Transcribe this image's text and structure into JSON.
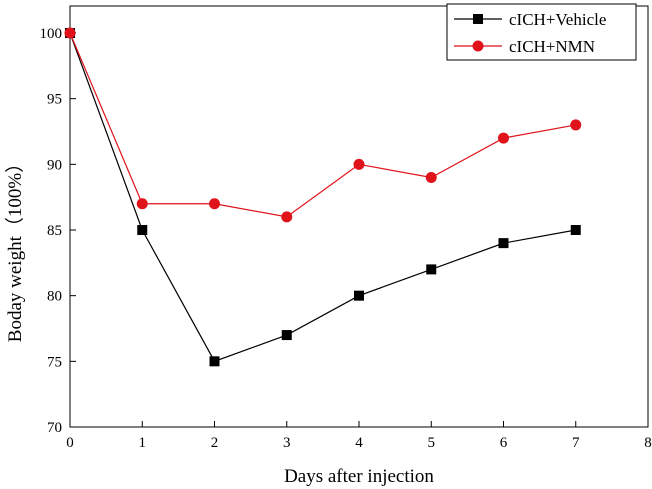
{
  "chart_data": {
    "type": "line",
    "xlabel": "Days after injection",
    "ylabel": "Boday weight（100%）",
    "xlim": [
      0,
      8
    ],
    "ylim": [
      70,
      102
    ],
    "xticks": [
      0,
      1,
      2,
      3,
      4,
      5,
      6,
      7,
      8
    ],
    "yticks": [
      70,
      75,
      80,
      85,
      90,
      95,
      100
    ],
    "grid": false,
    "legend_position": "top-right",
    "series": [
      {
        "name": "cICH+Vehicle",
        "color": "#000000",
        "marker": "square",
        "x": [
          0,
          1,
          2,
          3,
          4,
          5,
          6,
          7
        ],
        "values": [
          100,
          85,
          75,
          77,
          80,
          82,
          84,
          85
        ]
      },
      {
        "name": "cICH+NMN",
        "color": "#e0131b",
        "marker": "circle",
        "x": [
          0,
          1,
          2,
          3,
          4,
          5,
          6,
          7
        ],
        "values": [
          100,
          87,
          87,
          86,
          90,
          89,
          92,
          93
        ]
      }
    ]
  }
}
